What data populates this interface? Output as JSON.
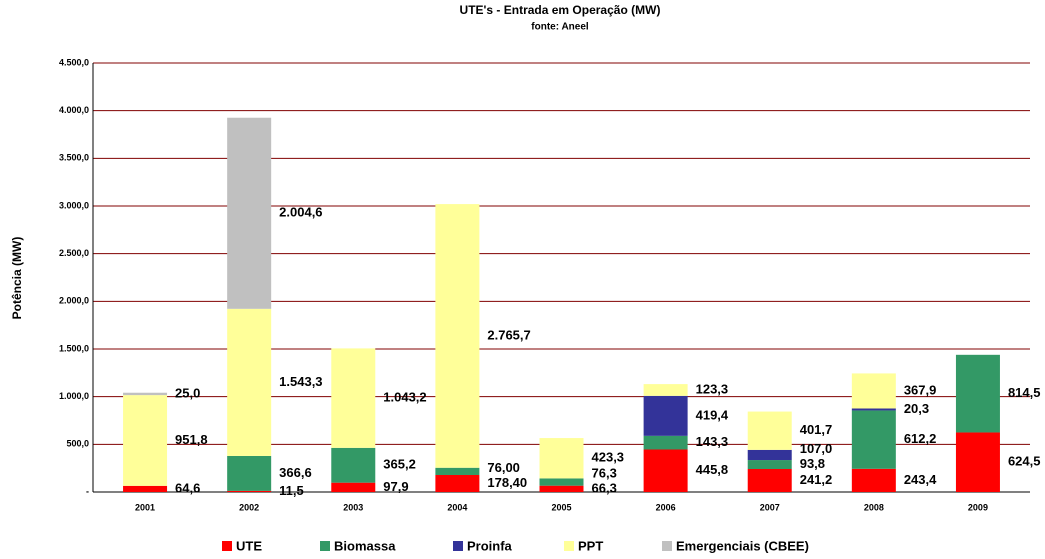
{
  "chart_data": {
    "type": "stacked_bar",
    "title": "UTE's - Entrada em Operação (MW)",
    "subtitle": "fonte: Aneel",
    "y_label": "Potência (MW)",
    "categories": [
      "2001",
      "2002",
      "2003",
      "2004",
      "2005",
      "2006",
      "2007",
      "2008",
      "2009"
    ],
    "ylim": [
      0,
      4500
    ],
    "yticks": [
      {
        "value": 0,
        "label": "-"
      },
      {
        "value": 500,
        "label": "500,0"
      },
      {
        "value": 1000,
        "label": "1.000,0"
      },
      {
        "value": 1500,
        "label": "1.500,0"
      },
      {
        "value": 2000,
        "label": "2.000,0"
      },
      {
        "value": 2500,
        "label": "2.500,0"
      },
      {
        "value": 3000,
        "label": "3.000,0"
      },
      {
        "value": 3500,
        "label": "3.500,0"
      },
      {
        "value": 4000,
        "label": "4.000,0"
      },
      {
        "value": 4500,
        "label": "4.500,0"
      }
    ],
    "grid": true,
    "series": [
      {
        "name": "UTE",
        "color": "#ff0000",
        "values": [
          64.6,
          11.5,
          97.9,
          178.4,
          66.3,
          445.8,
          241.2,
          243.4,
          624.5
        ],
        "value_labels": [
          "64,6",
          "11,5",
          "97,9",
          "178,40",
          "66,3",
          "445,8",
          "241,2",
          "243,4",
          "624,5"
        ]
      },
      {
        "name": "Biomassa",
        "color": "#339966",
        "values": [
          null,
          366.6,
          365.2,
          76.0,
          76.3,
          143.3,
          93.8,
          612.2,
          814.5
        ],
        "value_labels": [
          null,
          "366,6",
          "365,2",
          "76,00",
          "76,3",
          "143,3",
          "93,8",
          "612,2",
          "814,5"
        ]
      },
      {
        "name": "Proinfa",
        "color": "#333399",
        "values": [
          null,
          null,
          null,
          null,
          null,
          419.4,
          107.0,
          20.3,
          null
        ],
        "value_labels": [
          null,
          null,
          null,
          null,
          null,
          "419,4",
          "107,0",
          "20,3",
          null
        ]
      },
      {
        "name": "PPT",
        "color": "#ffff99",
        "values": [
          951.8,
          1543.3,
          1043.2,
          2765.7,
          423.3,
          123.3,
          401.7,
          367.9,
          null
        ],
        "value_labels": [
          "951,8",
          "1.543,3",
          "1.043,2",
          "2.765,7",
          "423,3",
          "123,3",
          "401,7",
          "367,9",
          null
        ]
      },
      {
        "name": "Emergenciais (CBEE)",
        "color": "#c0c0c0",
        "values": [
          25.0,
          2004.6,
          null,
          null,
          null,
          null,
          null,
          null,
          null
        ],
        "value_labels": [
          "25,0",
          "2.004,6",
          null,
          null,
          null,
          null,
          null,
          null,
          null
        ]
      }
    ]
  }
}
